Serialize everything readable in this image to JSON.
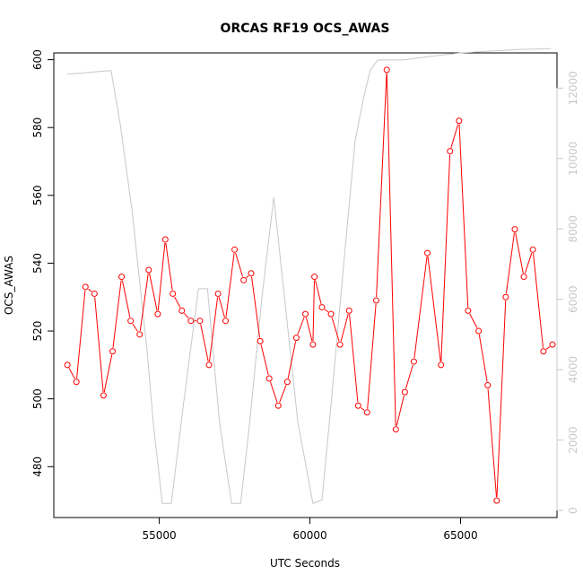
{
  "chart_data": {
    "type": "line",
    "title": "ORCAS RF19 OCS_AWAS",
    "xlabel": "UTC Seconds",
    "ylabel": "OCS_AWAS",
    "xlim": [
      51500,
      68200
    ],
    "ylim": [
      465,
      602
    ],
    "y2lim": [
      -200,
      13000
    ],
    "grid": false,
    "x_ticks": [
      55000,
      60000,
      65000
    ],
    "y_ticks": [
      480,
      500,
      520,
      540,
      560,
      580,
      600
    ],
    "y2_ticks": [
      0,
      2000,
      4000,
      6000,
      8000,
      10000,
      12000
    ],
    "colors": {
      "primary": "#ff0000",
      "secondary": "#c8c8c8",
      "axis": "#000000",
      "secondary_axis": "#c8c8c8"
    },
    "series": [
      {
        "axis": "left",
        "style": "line-points",
        "x": [
          51950,
          52250,
          52550,
          52850,
          53150,
          53450,
          53750,
          54050,
          54350,
          54650,
          54950,
          55200,
          55450,
          55750,
          56050,
          56350,
          56650,
          56950,
          57200,
          57500,
          57800,
          58050,
          58350,
          58650,
          58950,
          59250,
          59550,
          59850,
          60100,
          60150,
          60400,
          60700,
          61000,
          61300,
          61600,
          61900,
          62200,
          62550,
          62850,
          63150,
          63450,
          63900,
          64350,
          64650,
          64950,
          65250,
          65600,
          65900,
          66200,
          66500,
          66800,
          67100,
          67400,
          67750,
          68050
        ],
        "y": [
          510,
          505,
          533,
          531,
          501,
          514,
          536,
          523,
          519,
          538,
          525,
          547,
          531,
          526,
          523,
          523,
          510,
          531,
          523,
          544,
          535,
          537,
          517,
          506,
          498,
          505,
          518,
          525,
          516,
          536,
          527,
          525,
          516,
          526,
          498,
          496,
          529,
          597,
          491,
          502,
          511,
          543,
          510,
          573,
          582,
          526,
          520,
          504,
          470,
          530,
          550,
          536,
          544,
          514,
          516
        ]
      },
      {
        "axis": "right",
        "style": "line",
        "x": [
          51950,
          52300,
          52700,
          53400,
          53700,
          54100,
          54600,
          54800,
          55100,
          55400,
          55800,
          56300,
          56600,
          57000,
          57400,
          57700,
          58000,
          58400,
          58800,
          59100,
          59600,
          60100,
          60400,
          60700,
          61100,
          61500,
          61800,
          62000,
          62250,
          62600,
          63100,
          64000,
          65000,
          66000,
          67000,
          68000
        ],
        "y": [
          12400,
          12420,
          12450,
          12500,
          11000,
          8500,
          4500,
          2500,
          200,
          200,
          3000,
          6300,
          6300,
          2500,
          200,
          200,
          2500,
          6000,
          8900,
          6500,
          2500,
          200,
          300,
          3000,
          6800,
          10500,
          11800,
          12500,
          12800,
          12800,
          12800,
          12900,
          13000,
          13050,
          13100,
          13120
        ]
      }
    ]
  }
}
